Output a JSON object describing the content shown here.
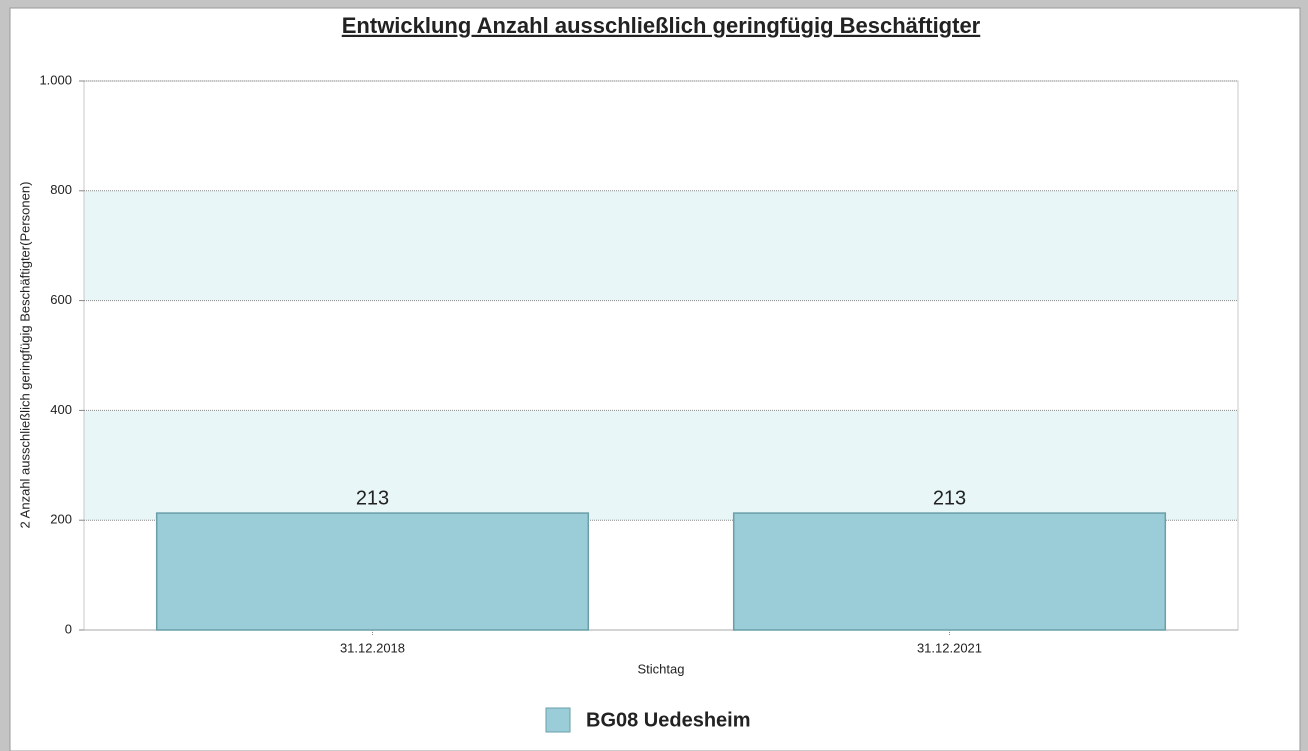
{
  "chart_data": {
    "type": "bar",
    "title": "Entwicklung Anzahl ausschließlich geringfügig Beschäftigter",
    "x_label": "Stichtag",
    "y_label": "2 Anzahl ausschließlich geringfügig Beschäftigter(Personen)",
    "categories": [
      "31.12.2018",
      "31.12.2021"
    ],
    "series": [
      {
        "name": "BG08 Uedesheim",
        "color": "#9acdd8",
        "values": [
          213,
          213
        ]
      }
    ],
    "ylim": [
      0,
      1000
    ],
    "yticks": [
      0,
      200,
      400,
      600,
      800,
      {
        "value": 1000,
        "label": "1.000"
      }
    ],
    "grid": true,
    "legend": "bottom"
  }
}
